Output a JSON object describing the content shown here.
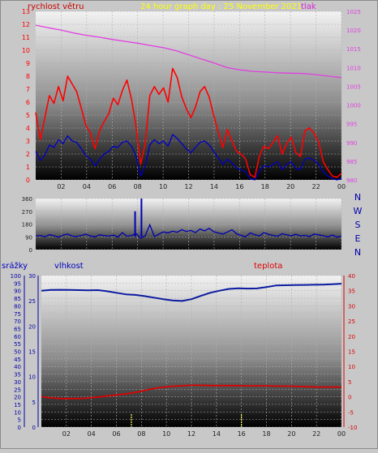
{
  "header": {
    "wind_label": "rychlost větru",
    "title": "24 hour graph day : 25 November 2021",
    "pressure_label": "tlak"
  },
  "colors": {
    "background": "#c8c8c8",
    "plot_top": "#f2f2f2",
    "plot_bottom": "#000000",
    "wind_speed": "#ff0000",
    "wind_avg": "#0000c8",
    "pressure": "#e040e0",
    "direction": "#0000b4",
    "humidity": "#0a1aa0",
    "temperature": "#dd0000",
    "rain": "#ffff66",
    "title": "#ffff00",
    "axis_text": "#222222"
  },
  "chart_data": [
    {
      "id": "wind",
      "type": "line",
      "x_ticks": [
        "02",
        "04",
        "06",
        "08",
        "10",
        "12",
        "14",
        "16",
        "18",
        "20",
        "22",
        "00"
      ],
      "y_left": {
        "label": "rychlost větru",
        "ticks": [
          0,
          1,
          2,
          3,
          4,
          5,
          6,
          7,
          8,
          9,
          10,
          11,
          12,
          13
        ],
        "ylim": [
          0,
          13
        ]
      },
      "y_right": {
        "label": "tlak",
        "ticks": [
          980,
          985,
          990,
          995,
          1000,
          1005,
          1010,
          1015,
          1020,
          1025
        ],
        "ylim": [
          980,
          1025
        ]
      },
      "grid": true,
      "series": [
        {
          "key": "gust",
          "axis": "left",
          "color": "#ff0000",
          "values": [
            5.2,
            3.1,
            4.8,
            6.5,
            5.9,
            7.2,
            6.1,
            8.0,
            7.4,
            6.8,
            5.5,
            4.2,
            3.6,
            2.4,
            3.8,
            4.5,
            5.1,
            6.3,
            5.8,
            6.9,
            7.7,
            6.2,
            4.1,
            1.2,
            2.8,
            6.5,
            7.2,
            6.6,
            7.1,
            6.0,
            8.6,
            7.9,
            6.4,
            5.5,
            4.8,
            5.6,
            6.8,
            7.2,
            6.4,
            5.0,
            3.7,
            2.5,
            3.9,
            3.0,
            2.2,
            2.0,
            1.6,
            0.4,
            0.2,
            1.8,
            2.6,
            2.4,
            2.9,
            3.4,
            2.0,
            2.8,
            3.3,
            2.1,
            1.8,
            3.8,
            4.0,
            3.6,
            2.9,
            1.4,
            0.8,
            0.3,
            0.2,
            0.5
          ]
        },
        {
          "key": "average",
          "axis": "left",
          "color": "#0000c8",
          "values": [
            2.2,
            1.5,
            1.9,
            2.7,
            2.5,
            3.1,
            2.8,
            3.4,
            3.0,
            2.9,
            2.4,
            1.9,
            1.6,
            1.1,
            1.6,
            2.0,
            2.2,
            2.6,
            2.5,
            2.9,
            3.0,
            2.6,
            1.8,
            0.3,
            1.1,
            2.7,
            3.1,
            2.8,
            3.0,
            2.6,
            3.5,
            3.2,
            2.8,
            2.4,
            2.1,
            2.5,
            2.9,
            3.0,
            2.7,
            2.2,
            1.7,
            1.2,
            1.6,
            1.3,
            0.9,
            0.8,
            0.6,
            0.1,
            0.0,
            0.7,
            1.1,
            1.0,
            1.2,
            1.4,
            0.8,
            1.2,
            1.4,
            0.9,
            0.8,
            1.6,
            1.7,
            1.5,
            1.2,
            0.6,
            0.3,
            0.1,
            0.0,
            0.1
          ]
        },
        {
          "key": "pressure",
          "axis": "right",
          "color": "#e040e0",
          "values": [
            1021.3,
            1020.6,
            1020.0,
            1019.2,
            1018.6,
            1018.1,
            1017.5,
            1017.0,
            1016.5,
            1015.9,
            1015.3,
            1014.5,
            1013.4,
            1012.3,
            1011.2,
            1010.0,
            1009.4,
            1009.0,
            1008.8,
            1008.6,
            1008.5,
            1008.4,
            1008.1,
            1007.7,
            1007.3
          ]
        }
      ]
    },
    {
      "id": "direction",
      "type": "line",
      "x_ticks": [
        "02",
        "04",
        "06",
        "08",
        "10",
        "12",
        "14",
        "16",
        "18",
        "20",
        "22",
        "00"
      ],
      "y_left": {
        "ticks": [
          0,
          90,
          180,
          270,
          360
        ],
        "ylim": [
          0,
          360
        ]
      },
      "y_right_labels": [
        "N",
        "W",
        "S",
        "E",
        "N"
      ],
      "grid": true,
      "series": [
        {
          "key": "direction",
          "color": "#0000b4",
          "values": [
            95,
            100,
            90,
            105,
            98,
            88,
            102,
            110,
            95,
            92,
            100,
            108,
            96,
            90,
            104,
            99,
            95,
            102,
            88,
            120,
            94,
            100,
            112,
            80,
            98,
            175,
            92,
            110,
            125,
            118,
            130,
            122,
            140,
            128,
            135,
            120,
            145,
            132,
            150,
            126,
            118,
            110,
            124,
            140,
            112,
            100,
            90,
            118,
            105,
            96,
            120,
            108,
            100,
            94,
            112,
            104,
            98,
            108,
            96,
            100,
            92,
            110,
            104,
            98,
            90,
            102,
            88,
            96
          ]
        }
      ],
      "spikes": [
        {
          "x": 8.3,
          "y": 360
        },
        {
          "x": 7.8,
          "y": 270
        }
      ]
    },
    {
      "id": "humidity_temp",
      "type": "line",
      "x_ticks": [
        "02",
        "04",
        "06",
        "08",
        "10",
        "12",
        "14",
        "16",
        "18",
        "20",
        "22",
        "00"
      ],
      "y_left_rain": {
        "label": "srážky",
        "ticks": [
          0,
          5,
          10,
          15,
          20,
          25,
          30,
          35,
          40,
          45,
          50,
          55,
          60,
          65,
          70,
          75,
          80,
          85,
          90,
          95,
          100
        ],
        "ylim": [
          0,
          100
        ]
      },
      "y_left_humidity": {
        "label": "vlhkost",
        "ticks": [
          0,
          5,
          10,
          15,
          20,
          25,
          30
        ],
        "ylim": [
          0,
          30
        ]
      },
      "y_right_temp": {
        "label": "teplota",
        "ticks": [
          -10,
          -5,
          0,
          5,
          10,
          15,
          20,
          25,
          30,
          35,
          40
        ],
        "ylim": [
          -10,
          40
        ]
      },
      "grid": true,
      "series": [
        {
          "key": "humidity",
          "axis": "rain",
          "color": "#0a1aa0",
          "values": [
            90,
            90.5,
            90.6,
            90.5,
            90.4,
            90.2,
            90.4,
            89.6,
            88.6,
            87.6,
            87.2,
            86.4,
            85.4,
            84.4,
            83.6,
            83.2,
            84.4,
            86.6,
            88.6,
            90.0,
            91.2,
            91.6,
            91.4,
            91.5,
            92.4,
            93.4,
            93.6,
            93.7,
            93.8,
            93.9,
            94.0,
            94.2,
            94.6
          ]
        },
        {
          "key": "temperature",
          "axis": "temp",
          "color": "#dd0000",
          "values": [
            0.0,
            -0.4,
            -0.6,
            -0.6,
            -0.5,
            -0.2,
            0.2,
            0.6,
            1.0,
            1.6,
            2.4,
            3.0,
            3.4,
            3.6,
            3.8,
            3.8,
            3.7,
            3.7,
            3.7,
            3.6,
            3.6,
            3.6,
            3.5,
            3.5,
            3.4,
            3.3,
            3.2,
            3.2,
            3.2
          ]
        }
      ],
      "rain_marks_hours": [
        7.2,
        16.0
      ]
    }
  ]
}
